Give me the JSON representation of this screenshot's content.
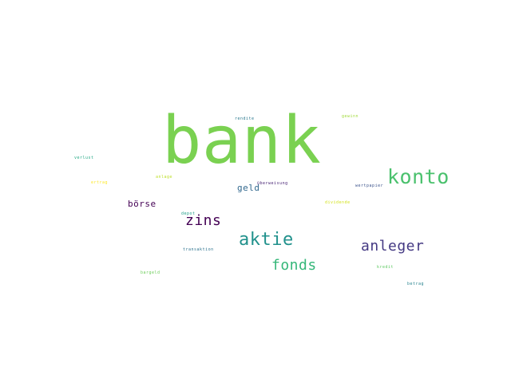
{
  "words": [
    {
      "text": "bank",
      "color": "#7ad151"
    },
    {
      "text": "konto",
      "color": "#4ac16d"
    },
    {
      "text": "aktie",
      "color": "#21918c"
    },
    {
      "text": "anleger",
      "color": "#443983"
    },
    {
      "text": "fonds",
      "color": "#35b779"
    },
    {
      "text": "zins",
      "color": "#440154"
    },
    {
      "text": "börse",
      "color": "#440154"
    },
    {
      "text": "geld",
      "color": "#31688e"
    },
    {
      "text": "rendite",
      "color": "#2a788e"
    },
    {
      "text": "gewinn",
      "color": "#a0da39"
    },
    {
      "text": "verlust",
      "color": "#22a884"
    },
    {
      "text": "anlage",
      "color": "#bddf26"
    },
    {
      "text": "ertrag",
      "color": "#fde725"
    },
    {
      "text": "überweisung",
      "color": "#482475"
    },
    {
      "text": "wertpapier",
      "color": "#3b528b"
    },
    {
      "text": "dividende",
      "color": "#d2e21b"
    },
    {
      "text": "depot",
      "color": "#1f9e89"
    },
    {
      "text": "transaktion",
      "color": "#2c728e"
    },
    {
      "text": "bargeld",
      "color": "#6ccd5a"
    },
    {
      "text": "kredit",
      "color": "#5ec962"
    },
    {
      "text": "betrag",
      "color": "#26828e"
    }
  ]
}
